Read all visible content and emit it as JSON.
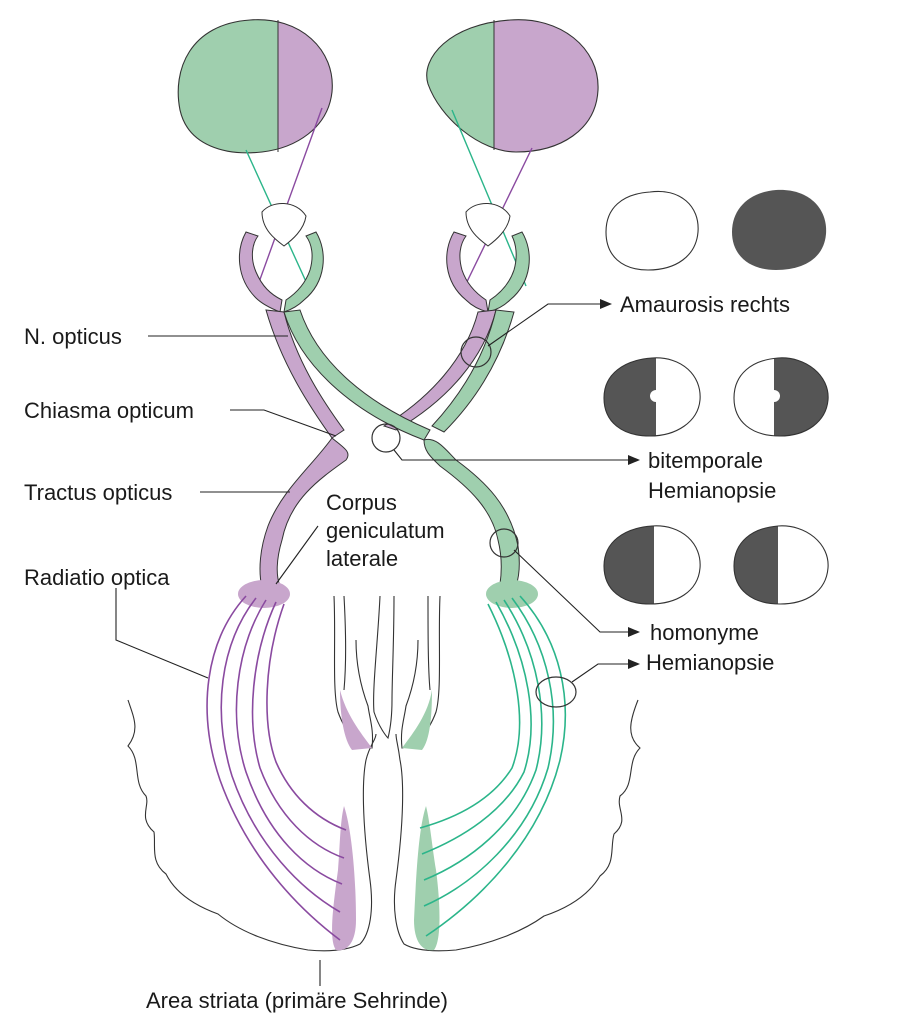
{
  "labels": {
    "n_opticus": "N. opticus",
    "chiasma": "Chiasma opticum",
    "tractus": "Tractus opticus",
    "radiatio": "Radiatio optica",
    "corpus_1": "Corpus",
    "corpus_2": "geniculatum",
    "corpus_3": "laterale",
    "amaurosis": "Amaurosis rechts",
    "bitemporal_1": "bitemporale",
    "bitemporal_2": "Hemianopsie",
    "homonym_1": "homonyme",
    "homonym_2": "Hemianopsie",
    "area": "Area striata (primäre Sehrinde)"
  },
  "colors": {
    "green": "#9fcfae",
    "purple": "#c8a6cc",
    "green_line": "#2bb58a",
    "purple_line": "#8a4aa0",
    "defect": "#555555"
  }
}
